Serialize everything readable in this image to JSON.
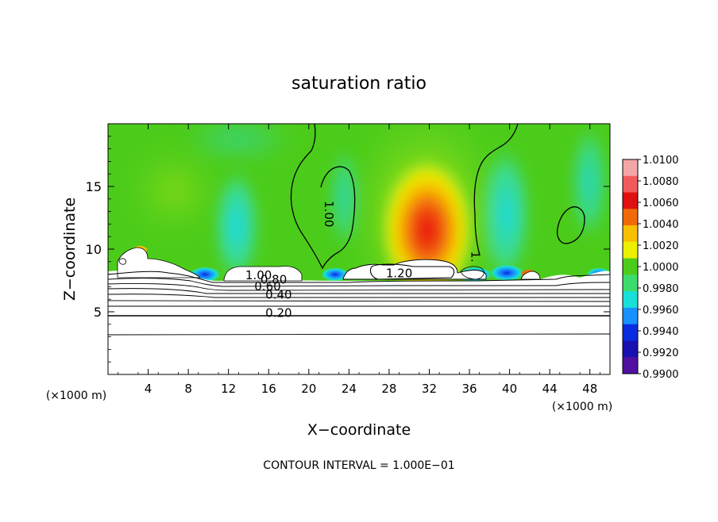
{
  "chart_data": {
    "type": "heatmap",
    "title": "saturation ratio",
    "xlabel": "X−coordinate",
    "ylabel": "Z−coordinate",
    "x_unit": "(×1000 m)",
    "z_unit": "(×1000 m)",
    "x_ticks": [
      4,
      8,
      12,
      16,
      20,
      24,
      28,
      32,
      36,
      40,
      44,
      48
    ],
    "y_ticks": [
      5,
      10,
      15
    ],
    "xlim": [
      0,
      50
    ],
    "ylim": [
      0,
      20
    ],
    "footnote": "CONTOUR INTERVAL = 1.000E−01",
    "colorbar": {
      "ticks": [
        "1.0100",
        "1.0080",
        "1.0060",
        "1.0040",
        "1.0020",
        "1.0000",
        "0.9980",
        "0.9960",
        "0.9940",
        "0.9920",
        "0.9900"
      ],
      "colors": [
        "#f4a6a6",
        "#f25a5a",
        "#e01010",
        "#f06a0a",
        "#f8c000",
        "#ecf000",
        "#4ccc1a",
        "#3cdc6c",
        "#18e0d8",
        "#1890ff",
        "#0a2ce0",
        "#1a10b0",
        "#5010a0"
      ]
    },
    "contour_labels": [
      {
        "text": "1.00",
        "x": 21.6,
        "z": 12.8,
        "rot": 90
      },
      {
        "text": "1.00",
        "x": 15.0,
        "z": 7.6,
        "rot": 0
      },
      {
        "text": "0.80",
        "x": 16.5,
        "z": 7.25,
        "rot": 0
      },
      {
        "text": "0.60",
        "x": 15.9,
        "z": 6.7,
        "rot": 0
      },
      {
        "text": "0.40",
        "x": 17.0,
        "z": 6.05,
        "rot": 0
      },
      {
        "text": "0.20",
        "x": 17.0,
        "z": 4.6,
        "rot": 0
      },
      {
        "text": "1.20",
        "x": 29.0,
        "z": 7.75,
        "rot": 0
      },
      {
        "text": "1.",
        "x": 36.2,
        "z": 9.4,
        "rot": 90
      }
    ]
  }
}
